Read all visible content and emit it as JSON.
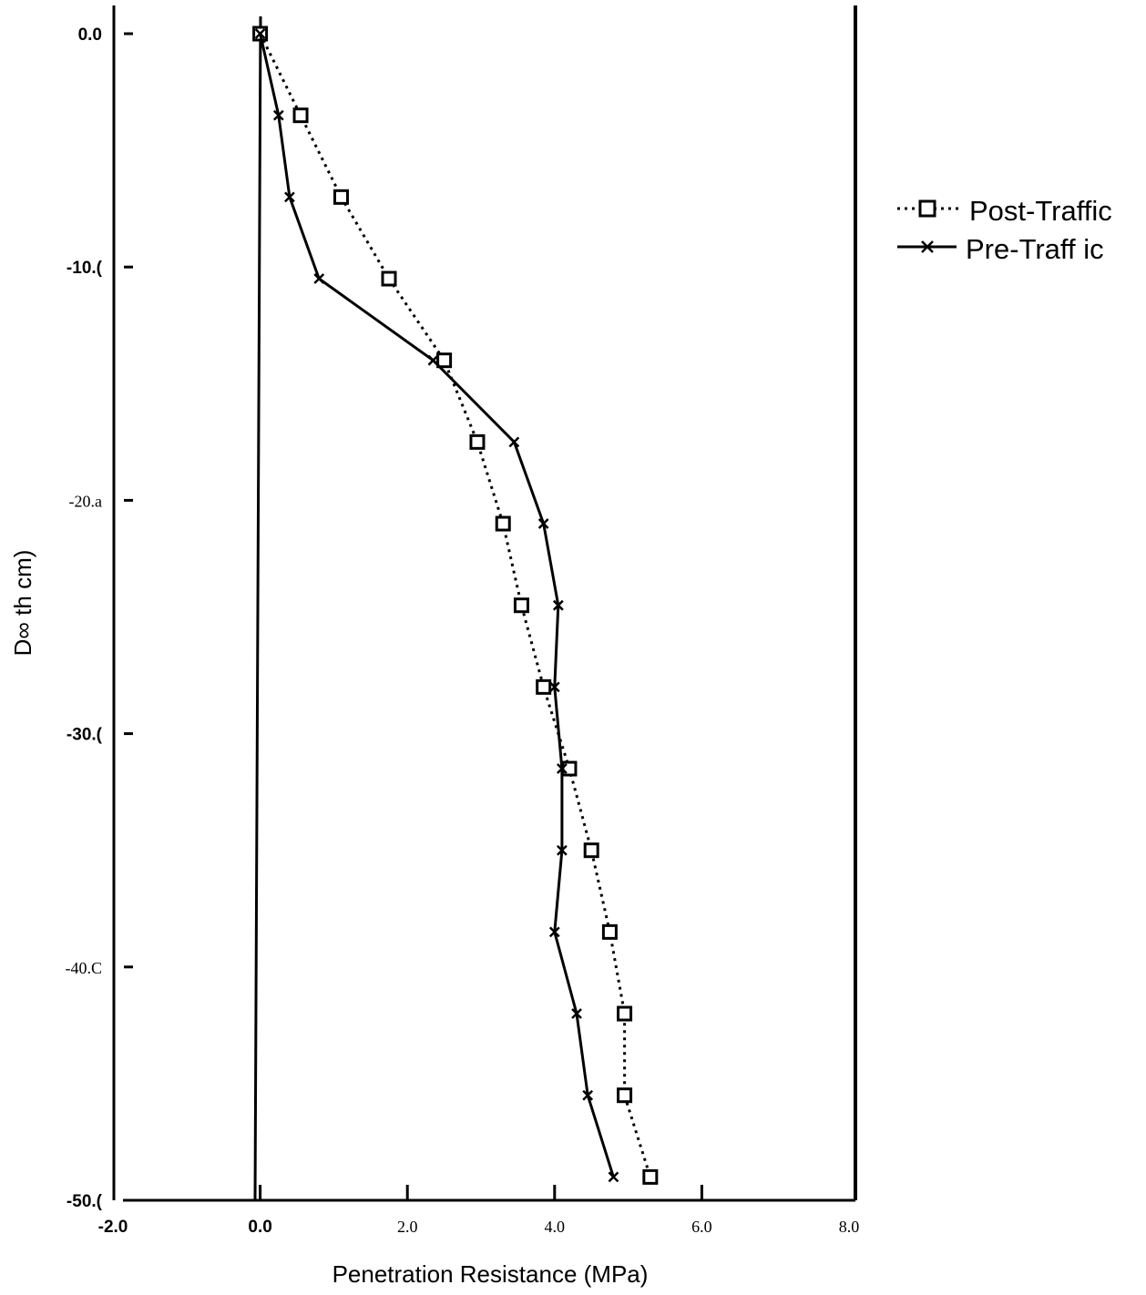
{
  "chart_data": {
    "type": "line",
    "title": "",
    "xlabel": "Penetration Resistance (MPa)",
    "ylabel": "D∞ th cm)",
    "xlim": [
      -2.0,
      8.0
    ],
    "ylim": [
      -50.0,
      0.0
    ],
    "grid": false,
    "legend_position": "right",
    "x_tick_labels": [
      {
        "value": -2.0,
        "label": "-2.0",
        "style": "bold"
      },
      {
        "value": 0.0,
        "label": "0.0",
        "style": "bold"
      },
      {
        "value": 2.0,
        "label": "2.0",
        "style": "serif"
      },
      {
        "value": 4.0,
        "label": "4.0",
        "style": "serif"
      },
      {
        "value": 6.0,
        "label": "6.0",
        "style": "serif"
      },
      {
        "value": 8.0,
        "label": "8.0",
        "style": "serif"
      }
    ],
    "y_tick_labels": [
      {
        "value": 0.0,
        "label": "0.0",
        "style": "bold"
      },
      {
        "value": -10.0,
        "label": "-10.(",
        "style": "bold"
      },
      {
        "value": -20.0,
        "label": "-20.a",
        "style": "serif"
      },
      {
        "value": -30.0,
        "label": "-30.(",
        "style": "bold"
      },
      {
        "value": -40.0,
        "label": "-40.C",
        "style": "serif"
      },
      {
        "value": -50.0,
        "label": "-50.(",
        "style": "bold"
      }
    ],
    "series": [
      {
        "name": "Post-Traffic",
        "color": "#000000",
        "line": "dotted",
        "marker": "square",
        "points": [
          {
            "x": 0.0,
            "y": 0.0
          },
          {
            "x": 0.55,
            "y": -3.5
          },
          {
            "x": 1.1,
            "y": -7.0
          },
          {
            "x": 1.75,
            "y": -10.5
          },
          {
            "x": 2.5,
            "y": -14.0
          },
          {
            "x": 2.95,
            "y": -17.5
          },
          {
            "x": 3.3,
            "y": -21.0
          },
          {
            "x": 3.55,
            "y": -24.5
          },
          {
            "x": 3.85,
            "y": -28.0
          },
          {
            "x": 4.2,
            "y": -31.5
          },
          {
            "x": 4.5,
            "y": -35.0
          },
          {
            "x": 4.75,
            "y": -38.5
          },
          {
            "x": 4.95,
            "y": -42.0
          },
          {
            "x": 4.95,
            "y": -45.5
          },
          {
            "x": 5.3,
            "y": -49.0
          }
        ]
      },
      {
        "name": "Pre-Traff ic",
        "color": "#000000",
        "line": "solid",
        "marker": "x",
        "points": [
          {
            "x": 0.0,
            "y": 0.0
          },
          {
            "x": 0.25,
            "y": -3.5
          },
          {
            "x": 0.4,
            "y": -7.0
          },
          {
            "x": 0.8,
            "y": -10.5
          },
          {
            "x": 2.35,
            "y": -14.0
          },
          {
            "x": 3.45,
            "y": -17.5
          },
          {
            "x": 3.85,
            "y": -21.0
          },
          {
            "x": 4.05,
            "y": -24.5
          },
          {
            "x": 4.0,
            "y": -28.0
          },
          {
            "x": 4.1,
            "y": -31.5
          },
          {
            "x": 4.1,
            "y": -35.0
          },
          {
            "x": 4.0,
            "y": -38.5
          },
          {
            "x": 4.3,
            "y": -42.0
          },
          {
            "x": 4.45,
            "y": -45.5
          },
          {
            "x": 4.8,
            "y": -49.0
          }
        ]
      }
    ]
  }
}
